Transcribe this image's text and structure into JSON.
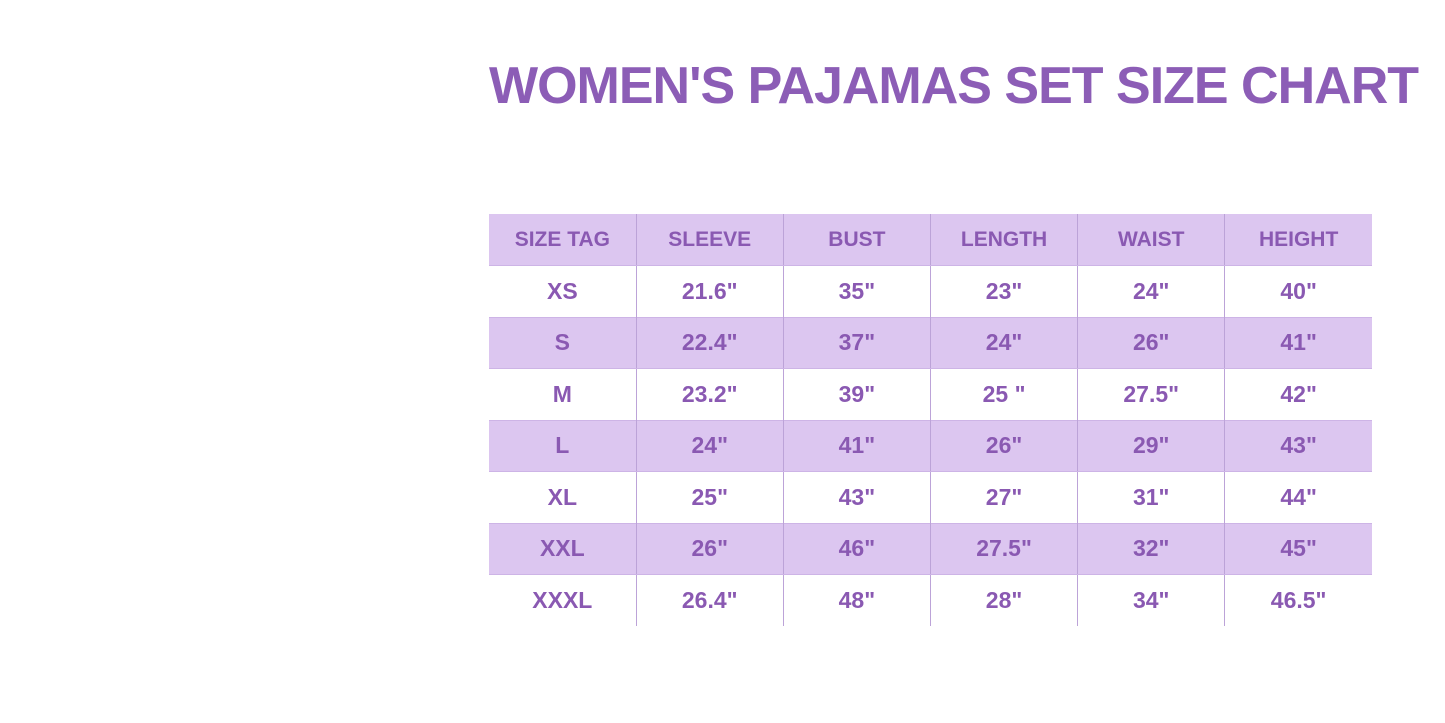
{
  "title": {
    "text": "WOMEN'S PAJAMAS SET SIZE CHART"
  },
  "chart_data": {
    "type": "table",
    "title": "WOMEN'S PAJAMAS SET SIZE CHART",
    "columns": [
      "SIZE TAG",
      "SLEEVE",
      "BUST",
      "LENGTH",
      "WAIST",
      "HEIGHT"
    ],
    "rows": [
      [
        "XS",
        "21.6\"",
        "35\"",
        "23\"",
        "24\"",
        "40\""
      ],
      [
        "S",
        "22.4\"",
        "37\"",
        "24\"",
        "26\"",
        "41\""
      ],
      [
        "M",
        "23.2\"",
        "39\"",
        "25 \"",
        "27.5\"",
        "42\""
      ],
      [
        "L",
        "24\"",
        "41\"",
        "26\"",
        "29\"",
        "43\""
      ],
      [
        "XL",
        "25\"",
        "43\"",
        "27\"",
        "31\"",
        "44\""
      ],
      [
        "XXL",
        "26\"",
        "46\"",
        "27.5\"",
        "32\"",
        "45\""
      ],
      [
        "XXXL",
        "26.4\"",
        "48\"",
        "28\"",
        "34\"",
        "46.5\""
      ]
    ],
    "shaded_rows": [
      "S",
      "L",
      "XXL"
    ],
    "layout_hints": {
      "grid": "vertical-dividers-only",
      "stripe_pattern": "alternating-starting-with-header"
    }
  },
  "colors": {
    "page_bg": "#ffffff",
    "title_text": "#8c5db6",
    "table_text": "#8a59b2",
    "row_shade": "#dcc6f0",
    "column_divider": "#bca3d8",
    "row_hairline": "#cdb4e6"
  }
}
